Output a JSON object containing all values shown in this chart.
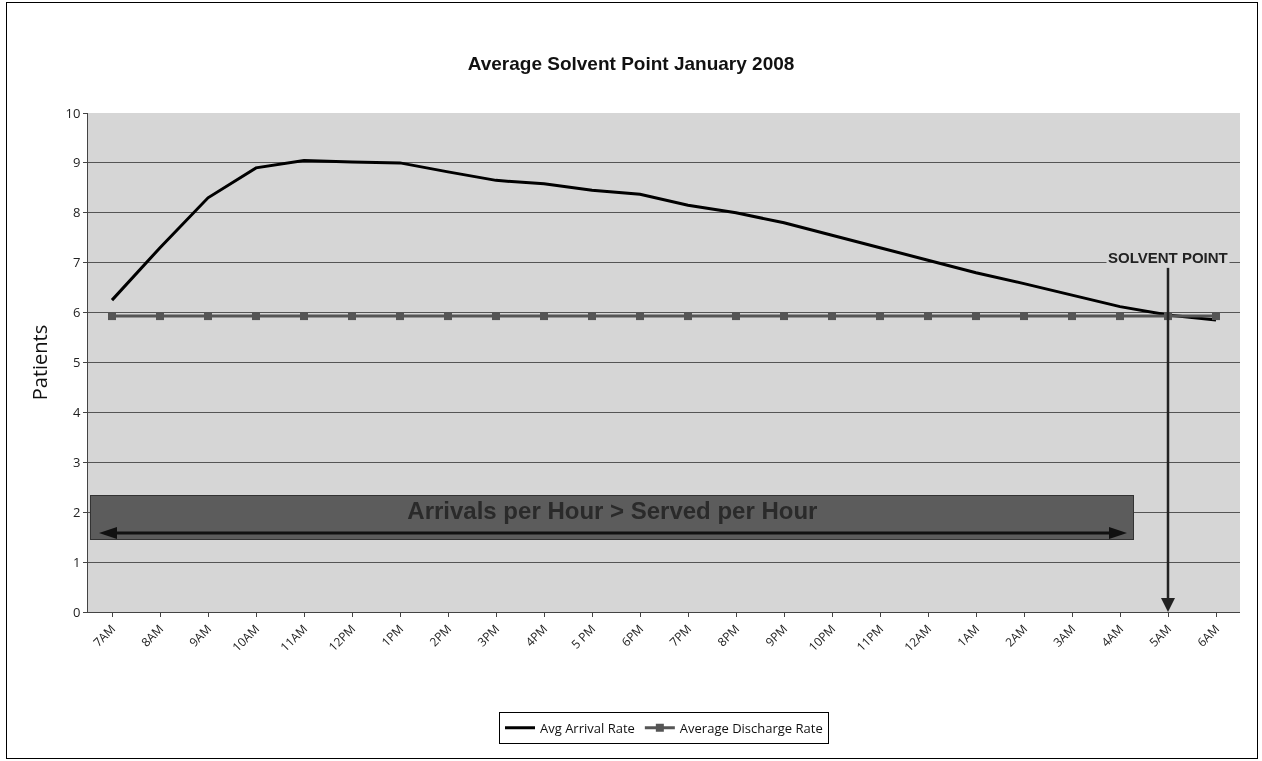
{
  "chart_data": {
    "type": "line",
    "title": "Average Solvent Point January 2008",
    "ylabel": "Patients",
    "categories": [
      "7AM",
      "8AM",
      "9AM",
      "10AM",
      "11AM",
      "12PM",
      "1PM",
      "2PM",
      "3PM",
      "4PM",
      "5 PM",
      "6PM",
      "7PM",
      "8PM",
      "9PM",
      "10PM",
      "11PM",
      "12AM",
      "1AM",
      "2AM",
      "3AM",
      "4AM",
      "5AM",
      "6AM"
    ],
    "series": [
      {
        "name": "Avg Arrival Rate",
        "color": "#000000",
        "marker": "none",
        "values": [
          6.25,
          7.3,
          8.3,
          8.9,
          9.05,
          9.02,
          9.0,
          8.82,
          8.65,
          8.58,
          8.45,
          8.37,
          8.15,
          8.0,
          7.8,
          7.55,
          7.3,
          7.05,
          6.8,
          6.58,
          6.35,
          6.12,
          5.95,
          5.85
        ]
      },
      {
        "name": "Average Discharge Rate",
        "color": "#555555",
        "marker": "square",
        "values": [
          5.93,
          5.93,
          5.93,
          5.93,
          5.93,
          5.93,
          5.93,
          5.93,
          5.93,
          5.93,
          5.93,
          5.93,
          5.93,
          5.93,
          5.93,
          5.93,
          5.93,
          5.93,
          5.93,
          5.93,
          5.93,
          5.93,
          5.93,
          5.93
        ]
      }
    ],
    "ylim": [
      0,
      10
    ],
    "yticks": [
      0,
      1,
      2,
      3,
      4,
      5,
      6,
      7,
      8,
      9,
      10
    ],
    "grid": "y",
    "legend": "bottom",
    "line_style": "solid",
    "ref_lines": [
      {
        "axis": "x",
        "value": "5AM",
        "label": "SOLVENT POINT"
      }
    ],
    "annotations": [
      "Arrivals per Hour > Served per Hour"
    ]
  }
}
